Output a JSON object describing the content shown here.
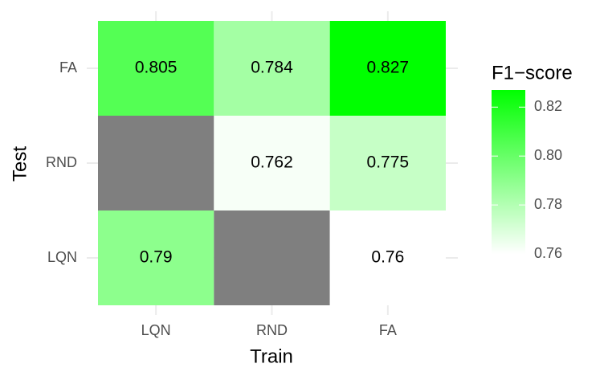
{
  "chart_data": {
    "type": "heatmap",
    "x_label": "Train",
    "y_label": "Test",
    "x": [
      "LQN",
      "RND",
      "FA"
    ],
    "y": [
      "LQN",
      "RND",
      "FA"
    ],
    "values": [
      [
        0.79,
        null,
        0.76
      ],
      [
        null,
        0.762,
        0.775
      ],
      [
        0.805,
        0.784,
        0.827
      ]
    ],
    "na_color": "#7f7f7f",
    "colors": [
      "#ffffff",
      "#00ff00"
    ],
    "colorlim": [
      0.76,
      0.827
    ],
    "legend_title": "F1−score",
    "colorbar_ticks": [
      0.76,
      0.78,
      {
        "value": 0.8,
        "label": "0.80"
      },
      0.82
    ],
    "grid": true
  }
}
